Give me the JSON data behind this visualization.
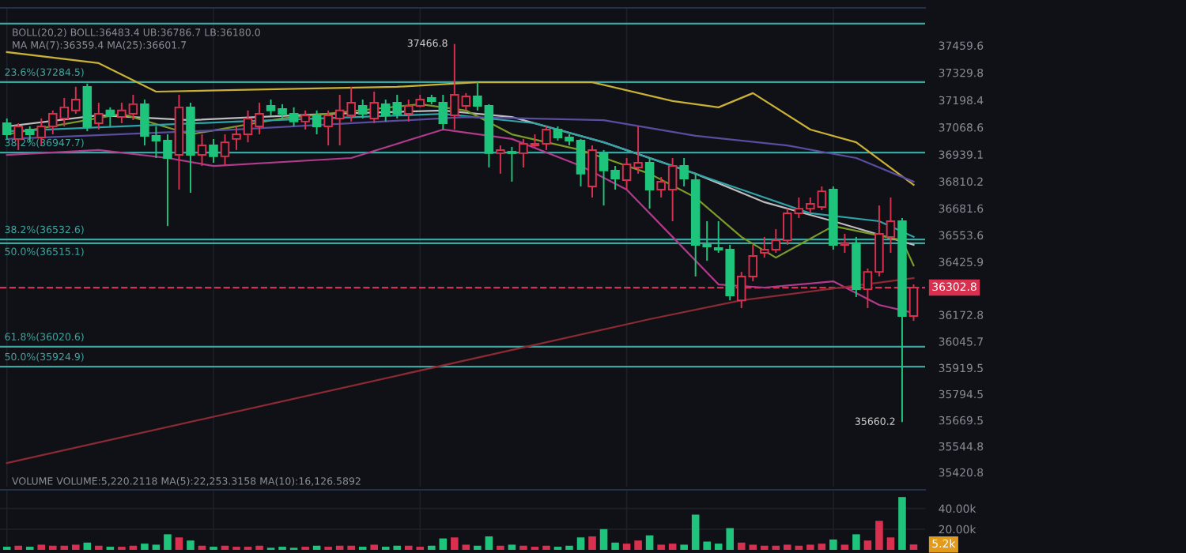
{
  "chart_data": [
    {
      "type": "candlestick",
      "categories": [
        null,
        null,
        null,
        null,
        null,
        null,
        null,
        null,
        null,
        null,
        null,
        null,
        null,
        null,
        null,
        null,
        null,
        null,
        null,
        null,
        null,
        null,
        null,
        null,
        null,
        null,
        null,
        null,
        null,
        null,
        null,
        null,
        null,
        null,
        null,
        null,
        null,
        null,
        null,
        null,
        null,
        null,
        null,
        null,
        null,
        null,
        null,
        null,
        null,
        null,
        null,
        null,
        null,
        null,
        null,
        null,
        null,
        null,
        null,
        null,
        null,
        null,
        null,
        null,
        null,
        null,
        null,
        null,
        null,
        null,
        null,
        null,
        null,
        null,
        null,
        null,
        null,
        null,
        null,
        null
      ],
      "ohlc": [
        [
          37088,
          37111,
          37013,
          37035
        ],
        [
          37013,
          37088,
          36960,
          37073
        ],
        [
          37058,
          37073,
          36997,
          37035
        ],
        [
          37020,
          37111,
          36982,
          37073
        ],
        [
          37073,
          37149,
          37035,
          37133
        ],
        [
          37111,
          37209,
          37073,
          37164
        ],
        [
          37149,
          37262,
          37133,
          37201
        ],
        [
          37262,
          37277,
          37050,
          37073
        ],
        [
          37088,
          37186,
          37058,
          37133
        ],
        [
          37149,
          37164,
          37073,
          37126
        ],
        [
          37118,
          37186,
          37088,
          37149
        ],
        [
          37133,
          37224,
          37103,
          37179
        ],
        [
          37179,
          37201,
          36982,
          37028
        ],
        [
          37028,
          37073,
          36922,
          37005
        ],
        [
          37005,
          37035,
          36597,
          36922
        ],
        [
          36937,
          37224,
          36771,
          37164
        ],
        [
          37164,
          37186,
          36756,
          36937
        ],
        [
          36937,
          37035,
          36884,
          36982
        ],
        [
          36982,
          37013,
          36899,
          36930
        ],
        [
          36930,
          37035,
          36884,
          36997
        ],
        [
          37013,
          37073,
          36960,
          37035
        ],
        [
          37035,
          37149,
          36997,
          37111
        ],
        [
          37073,
          37186,
          37035,
          37133
        ],
        [
          37171,
          37201,
          37126,
          37149
        ],
        [
          37156,
          37179,
          37111,
          37133
        ],
        [
          37133,
          37164,
          37073,
          37096
        ],
        [
          37096,
          37149,
          37058,
          37126
        ],
        [
          37126,
          37149,
          37035,
          37073
        ],
        [
          37073,
          37149,
          36982,
          37126
        ],
        [
          37111,
          37224,
          36982,
          37149
        ],
        [
          37126,
          37262,
          37096,
          37186
        ],
        [
          37171,
          37201,
          37111,
          37133
        ],
        [
          37111,
          37239,
          37088,
          37186
        ],
        [
          37179,
          37201,
          37096,
          37126
        ],
        [
          37186,
          37224,
          37111,
          37133
        ],
        [
          37133,
          37201,
          37096,
          37171
        ],
        [
          37171,
          37224,
          37164,
          37201
        ],
        [
          37209,
          37224,
          37179,
          37194
        ],
        [
          37186,
          37224,
          37058,
          37088
        ],
        [
          37126,
          37466.8,
          37058,
          37224
        ],
        [
          37171,
          37232,
          37149,
          37216
        ],
        [
          37216,
          37284,
          37149,
          37171
        ],
        [
          37171,
          37179,
          36877,
          36945
        ],
        [
          36945,
          36982,
          36847,
          36960
        ],
        [
          36952,
          36975,
          36809,
          36945
        ],
        [
          36945,
          37013,
          36877,
          36990
        ],
        [
          36982,
          37035,
          36975,
          36990
        ],
        [
          36990,
          37073,
          36960,
          37058
        ],
        [
          37058,
          37073,
          37005,
          37020
        ],
        [
          37020,
          37035,
          36982,
          37005
        ],
        [
          37005,
          37013,
          36786,
          36847
        ],
        [
          36786,
          36982,
          36733,
          36960
        ],
        [
          36945,
          36960,
          36695,
          36862
        ],
        [
          36862,
          36884,
          36771,
          36824
        ],
        [
          36816,
          36922,
          36771,
          36892
        ],
        [
          36877,
          37073,
          36847,
          36899
        ],
        [
          36899,
          36922,
          36680,
          36771
        ],
        [
          36771,
          36831,
          36733,
          36809
        ],
        [
          36771,
          36922,
          36620,
          36884
        ],
        [
          36884,
          36922,
          36786,
          36824
        ],
        [
          36816,
          36847,
          36356,
          36507
        ],
        [
          36507,
          36620,
          36431,
          36499
        ],
        [
          36492,
          36620,
          36469,
          36484
        ],
        [
          36484,
          36507,
          36242,
          36265
        ],
        [
          36242,
          36378,
          36205,
          36356
        ],
        [
          36356,
          36507,
          36333,
          36454
        ],
        [
          36469,
          36545,
          36446,
          36484
        ],
        [
          36484,
          36582,
          36469,
          36529
        ],
        [
          36529,
          36680,
          36507,
          36658
        ],
        [
          36658,
          36733,
          36635,
          36680
        ],
        [
          36680,
          36733,
          36658,
          36703
        ],
        [
          36688,
          36786,
          36673,
          36763
        ],
        [
          36771,
          36786,
          36484,
          36507
        ],
        [
          36507,
          36560,
          36469,
          36515
        ],
        [
          36515,
          36545,
          36258,
          36295
        ],
        [
          36295,
          36394,
          36205,
          36378
        ],
        [
          36378,
          36695,
          36356,
          36560
        ],
        [
          36545,
          36733,
          36469,
          36620
        ],
        [
          36620,
          36635,
          35660.2,
          36167
        ],
        [
          36167,
          36318,
          36144,
          36302.8
        ]
      ],
      "colors": [
        "#1fc47c",
        "#d9304f",
        "#1fc47c",
        "#d9304f",
        "#d9304f",
        "#d9304f",
        "#d9304f",
        "#1fc47c",
        "#d9304f",
        "#1fc47c",
        "#d9304f",
        "#d9304f",
        "#1fc47c",
        "#1fc47c",
        "#1fc47c",
        "#d9304f",
        "#1fc47c",
        "#d9304f",
        "#1fc47c",
        "#d9304f",
        "#d9304f",
        "#d9304f",
        "#d9304f",
        "#1fc47c",
        "#1fc47c",
        "#1fc47c",
        "#d9304f",
        "#1fc47c",
        "#d9304f",
        "#d9304f",
        "#d9304f",
        "#1fc47c",
        "#d9304f",
        "#1fc47c",
        "#1fc47c",
        "#d9304f",
        "#d9304f",
        "#1fc47c",
        "#1fc47c",
        "#d9304f",
        "#d9304f",
        "#1fc47c",
        "#1fc47c",
        "#d9304f",
        "#1fc47c",
        "#d9304f",
        "#d9304f",
        "#d9304f",
        "#1fc47c",
        "#1fc47c",
        "#1fc47c",
        "#d9304f",
        "#1fc47c",
        "#1fc47c",
        "#d9304f",
        "#d9304f",
        "#1fc47c",
        "#d9304f",
        "#d9304f",
        "#1fc47c",
        "#1fc47c",
        "#1fc47c",
        "#1fc47c",
        "#1fc47c",
        "#d9304f",
        "#d9304f",
        "#d9304f",
        "#d9304f",
        "#d9304f",
        "#d9304f",
        "#d9304f",
        "#d9304f",
        "#1fc47c",
        "#d9304f",
        "#1fc47c",
        "#d9304f",
        "#d9304f",
        "#d9304f",
        "#1fc47c",
        "#d9304f"
      ],
      "series": [
        {
          "type": "line",
          "color": "#c9b037",
          "values": [
            37428,
            null,
            null,
            null,
            null,
            null,
            null,
            null,
            37375,
            null,
            null,
            null,
            null,
            37239,
            null,
            null,
            null,
            null,
            null,
            null,
            37247,
            null,
            null,
            null,
            null,
            null,
            null,
            null,
            null,
            null,
            null,
            null,
            null,
            null,
            37262,
            null,
            null,
            null,
            null,
            null,
            null,
            37284,
            null,
            null,
            null,
            null,
            null,
            null,
            null,
            null,
            null,
            37284,
            null,
            null,
            null,
            null,
            null,
            null,
            37194,
            null,
            null,
            null,
            37164,
            null,
            null,
            37232,
            null,
            null,
            null,
            null,
            37058,
            null,
            null,
            null,
            36997,
            null,
            null,
            null,
            null,
            36794
          ]
        },
        {
          "type": "line",
          "color": "#bdbdbd",
          "values": [
            37073,
            null,
            null,
            null,
            null,
            null,
            null,
            null,
            37126,
            null,
            null,
            null,
            null,
            null,
            null,
            null,
            37103,
            null,
            null,
            null,
            null,
            null,
            null,
            null,
            null,
            null,
            null,
            null,
            37133,
            null,
            null,
            null,
            null,
            null,
            null,
            null,
            null,
            null,
            37149,
            null,
            null,
            null,
            null,
            null,
            37118,
            null,
            null,
            null,
            null,
            null,
            null,
            null,
            36997,
            null,
            null,
            null,
            null,
            null,
            null,
            null,
            36847,
            null,
            null,
            null,
            null,
            null,
            36711,
            null,
            null,
            null,
            null,
            null,
            36620,
            null,
            null,
            null,
            null,
            null,
            null,
            36507
          ]
        },
        {
          "type": "line",
          "color": "#b03a8c",
          "values": [
            36937,
            null,
            null,
            null,
            null,
            null,
            null,
            null,
            36960,
            null,
            null,
            null,
            null,
            null,
            36922,
            null,
            null,
            null,
            36884,
            null,
            null,
            null,
            null,
            null,
            null,
            null,
            null,
            null,
            null,
            null,
            36922,
            null,
            null,
            null,
            null,
            null,
            null,
            null,
            37058,
            null,
            null,
            null,
            null,
            null,
            37013,
            null,
            null,
            null,
            null,
            null,
            36884,
            null,
            null,
            null,
            36771,
            null,
            null,
            null,
            36545,
            null,
            null,
            null,
            36318,
            null,
            null,
            null,
            36303,
            null,
            null,
            null,
            null,
            null,
            36333,
            null,
            null,
            null,
            36220,
            null,
            null,
            36182
          ]
        },
        {
          "type": "line",
          "color": "#7a9a2a",
          "values": [
            37035,
            null,
            null,
            null,
            null,
            null,
            null,
            null,
            null,
            null,
            37133,
            null,
            null,
            null,
            null,
            null,
            37035,
            null,
            null,
            null,
            null,
            null,
            null,
            null,
            37111,
            null,
            null,
            null,
            null,
            null,
            null,
            null,
            null,
            null,
            null,
            null,
            37179,
            null,
            null,
            null,
            37149,
            null,
            null,
            null,
            37035,
            null,
            null,
            null,
            null,
            null,
            36960,
            null,
            null,
            null,
            null,
            null,
            36847,
            null,
            null,
            null,
            36733,
            null,
            null,
            null,
            36545,
            null,
            null,
            36446,
            null,
            null,
            null,
            null,
            36597,
            null,
            null,
            null,
            null,
            null,
            36529,
            36409
          ]
        },
        {
          "type": "line",
          "color": "#2fa3a8",
          "values": [
            37050,
            null,
            null,
            null,
            null,
            null,
            null,
            null,
            null,
            null,
            null,
            null,
            null,
            null,
            null,
            null,
            null,
            null,
            null,
            null,
            37096,
            null,
            null,
            null,
            null,
            null,
            null,
            null,
            null,
            null,
            null,
            null,
            null,
            null,
            null,
            null,
            null,
            null,
            37133,
            null,
            null,
            null,
            null,
            null,
            null,
            null,
            37088,
            null,
            null,
            null,
            null,
            null,
            36997,
            null,
            null,
            null,
            null,
            null,
            36884,
            null,
            null,
            null,
            null,
            null,
            36771,
            null,
            null,
            null,
            null,
            null,
            36658,
            null,
            null,
            null,
            null,
            null,
            36620,
            null,
            null,
            36545
          ]
        },
        {
          "type": "line",
          "color": "#5a4c9e",
          "values": [
            37013,
            null,
            null,
            null,
            null,
            null,
            null,
            null,
            null,
            null,
            null,
            null,
            null,
            null,
            null,
            null,
            null,
            null,
            null,
            null,
            37058,
            null,
            null,
            null,
            null,
            null,
            null,
            null,
            null,
            null,
            null,
            null,
            null,
            null,
            null,
            null,
            null,
            null,
            null,
            null,
            37118,
            null,
            null,
            null,
            null,
            null,
            null,
            null,
            null,
            null,
            null,
            null,
            37103,
            null,
            null,
            null,
            null,
            null,
            null,
            null,
            37028,
            null,
            null,
            null,
            null,
            null,
            null,
            null,
            36982,
            null,
            null,
            null,
            null,
            null,
            36922,
            null,
            null,
            null,
            null,
            36809
          ]
        },
        {
          "type": "line",
          "color": "#8c2a34",
          "values": [
            35465,
            null,
            null,
            null,
            null,
            null,
            null,
            null,
            null,
            null,
            null,
            null,
            null,
            null,
            null,
            null,
            null,
            null,
            null,
            null,
            null,
            null,
            null,
            null,
            null,
            null,
            null,
            null,
            null,
            null,
            null,
            null,
            null,
            null,
            null,
            null,
            null,
            null,
            null,
            null,
            null,
            null,
            null,
            null,
            null,
            null,
            null,
            null,
            null,
            null,
            null,
            null,
            null,
            null,
            null,
            null,
            36152,
            null,
            null,
            null,
            null,
            null,
            null,
            null,
            36242,
            null,
            null,
            null,
            null,
            null,
            null,
            null,
            null,
            null,
            null,
            null,
            null,
            null,
            null,
            36348
          ]
        }
      ],
      "ylim": [
        35352,
        37639
      ],
      "yticks": [
        37459.6,
        37329.8,
        37198.4,
        37068.6,
        36939.1,
        36810.2,
        36681.6,
        36553.6,
        36425.9,
        36172.8,
        36045.7,
        35919.5,
        35794.5,
        35669.5,
        35544.8,
        35420.8
      ],
      "ref_lines": [
        {
          "axis": "y",
          "value": 37564,
          "label": null,
          "color": "#3aa6a0"
        },
        {
          "axis": "y",
          "value": 37284.5,
          "label": "23.6%(37284.5)",
          "color": "#3aa6a0"
        },
        {
          "axis": "y",
          "value": 36947.7,
          "label": "38.2%(36947.7)",
          "color": "#3aa6a0"
        },
        {
          "axis": "y",
          "value": 36532.6,
          "label": "38.2%(36532.6)",
          "color": "#3aa6a0"
        },
        {
          "axis": "y",
          "value": 36515.1,
          "label": "50.0%(36515.1)",
          "color": "#3aa6a0"
        },
        {
          "axis": "y",
          "value": 36020.6,
          "label": "61.8%(36020.6)",
          "color": "#3aa6a0"
        },
        {
          "axis": "y",
          "value": 35924.9,
          "label": "50.0%(35924.9)",
          "color": "#3aa6a0"
        },
        {
          "axis": "y",
          "value": 36302.8,
          "label": "36302.8",
          "color": "#d9304f",
          "line_style": "dashed"
        }
      ],
      "annotations": [
        "BOLL(20,2) BOLL:36483.4 UB:36786.7 LB:36180.0",
        "MA MA(7):36359.4 MA(25):36601.7",
        "37466.8",
        "35660.2"
      ],
      "grid": "x",
      "legend": false,
      "tick_labels": "y"
    },
    {
      "type": "bar",
      "categories": [
        null,
        null,
        null,
        null,
        null,
        null,
        null,
        null,
        null,
        null,
        null,
        null,
        null,
        null,
        null,
        null,
        null,
        null,
        null,
        null,
        null,
        null,
        null,
        null,
        null,
        null,
        null,
        null,
        null,
        null,
        null,
        null,
        null,
        null,
        null,
        null,
        null,
        null,
        null,
        null,
        null,
        null,
        null,
        null,
        null,
        null,
        null,
        null,
        null,
        null,
        null,
        null,
        null,
        null,
        null,
        null,
        null,
        null,
        null,
        null,
        null,
        null,
        null,
        null,
        null,
        null,
        null,
        null,
        null,
        null,
        null,
        null,
        null,
        null,
        null,
        null,
        null,
        null,
        null,
        null
      ],
      "values": [
        3000,
        4000,
        3000,
        5000,
        4000,
        4000,
        5000,
        7000,
        4000,
        3000,
        3000,
        4000,
        6000,
        5000,
        15000,
        12000,
        9000,
        4000,
        3000,
        4000,
        3000,
        3000,
        4000,
        2000,
        3000,
        2000,
        3000,
        4000,
        3000,
        4000,
        4000,
        3000,
        5000,
        3000,
        4000,
        4000,
        3000,
        4000,
        11000,
        12000,
        5000,
        4000,
        13000,
        4000,
        5000,
        4000,
        3000,
        4000,
        3000,
        4000,
        12000,
        13000,
        20000,
        7000,
        6000,
        9000,
        14000,
        5000,
        6000,
        5000,
        34000,
        8000,
        6000,
        21000,
        7000,
        5000,
        4000,
        4000,
        5000,
        4000,
        5000,
        6000,
        10000,
        5000,
        15000,
        9000,
        28000,
        12000,
        51000,
        5200
      ],
      "colors": [
        "#1fc47c",
        "#d9304f",
        "#1fc47c",
        "#d9304f",
        "#d9304f",
        "#d9304f",
        "#d9304f",
        "#1fc47c",
        "#d9304f",
        "#1fc47c",
        "#d9304f",
        "#d9304f",
        "#1fc47c",
        "#1fc47c",
        "#1fc47c",
        "#d9304f",
        "#1fc47c",
        "#d9304f",
        "#1fc47c",
        "#d9304f",
        "#d9304f",
        "#d9304f",
        "#d9304f",
        "#1fc47c",
        "#1fc47c",
        "#1fc47c",
        "#d9304f",
        "#1fc47c",
        "#d9304f",
        "#d9304f",
        "#d9304f",
        "#1fc47c",
        "#d9304f",
        "#1fc47c",
        "#1fc47c",
        "#d9304f",
        "#d9304f",
        "#1fc47c",
        "#1fc47c",
        "#d9304f",
        "#d9304f",
        "#1fc47c",
        "#1fc47c",
        "#d9304f",
        "#1fc47c",
        "#d9304f",
        "#d9304f",
        "#d9304f",
        "#1fc47c",
        "#1fc47c",
        "#1fc47c",
        "#d9304f",
        "#1fc47c",
        "#1fc47c",
        "#d9304f",
        "#d9304f",
        "#1fc47c",
        "#d9304f",
        "#d9304f",
        "#1fc47c",
        "#1fc47c",
        "#1fc47c",
        "#1fc47c",
        "#1fc47c",
        "#d9304f",
        "#d9304f",
        "#d9304f",
        "#d9304f",
        "#d9304f",
        "#d9304f",
        "#d9304f",
        "#d9304f",
        "#1fc47c",
        "#d9304f",
        "#1fc47c",
        "#d9304f",
        "#d9304f",
        "#d9304f",
        "#1fc47c",
        "#d9304f"
      ],
      "ylim": [
        0,
        58000
      ],
      "yticks": [
        {
          "value": 40000,
          "label": "40.00k"
        },
        {
          "value": 20000,
          "label": "20.00k"
        }
      ],
      "annotations": [
        "VOLUME VOLUME:5,220.2118 MA(5):22,253.3158 MA(10):16,126.5892",
        "5.2k"
      ],
      "grid": true,
      "legend": false,
      "tick_labels": "y"
    }
  ]
}
